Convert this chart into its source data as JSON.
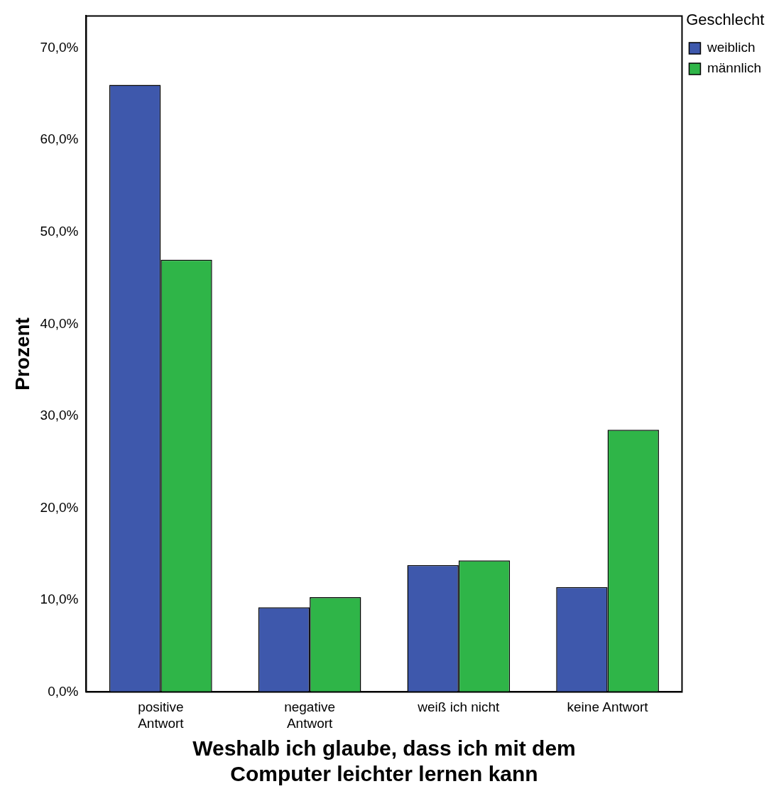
{
  "chart_data": {
    "type": "bar",
    "xlabel": "Weshalb ich glaube, dass ich mit dem\nComputer leichter lernen kann",
    "ylabel": "Prozent",
    "legend_title": "Geschlecht",
    "categories": [
      "positive\nAntwort",
      "negative\nAntwort",
      "weiß ich nicht",
      "keine Antwort"
    ],
    "series": [
      {
        "name": "weiblich",
        "color": "#3e58ac",
        "values": [
          66.0,
          9.2,
          13.8,
          11.4
        ]
      },
      {
        "name": "männlich",
        "color": "#2fb548",
        "values": [
          47.0,
          10.3,
          14.3,
          28.5
        ]
      }
    ],
    "ylim": [
      0,
      73.5
    ],
    "yticks": [
      {
        "value": 0,
        "label": "0,0%"
      },
      {
        "value": 10,
        "label": "10,0%"
      },
      {
        "value": 20,
        "label": "20,0%"
      },
      {
        "value": 30,
        "label": "30,0%"
      },
      {
        "value": 40,
        "label": "40,0%"
      },
      {
        "value": 50,
        "label": "50,0%"
      },
      {
        "value": 60,
        "label": "60,0%"
      },
      {
        "value": 70,
        "label": "70,0%"
      }
    ],
    "grid": false,
    "legend": "top right"
  }
}
